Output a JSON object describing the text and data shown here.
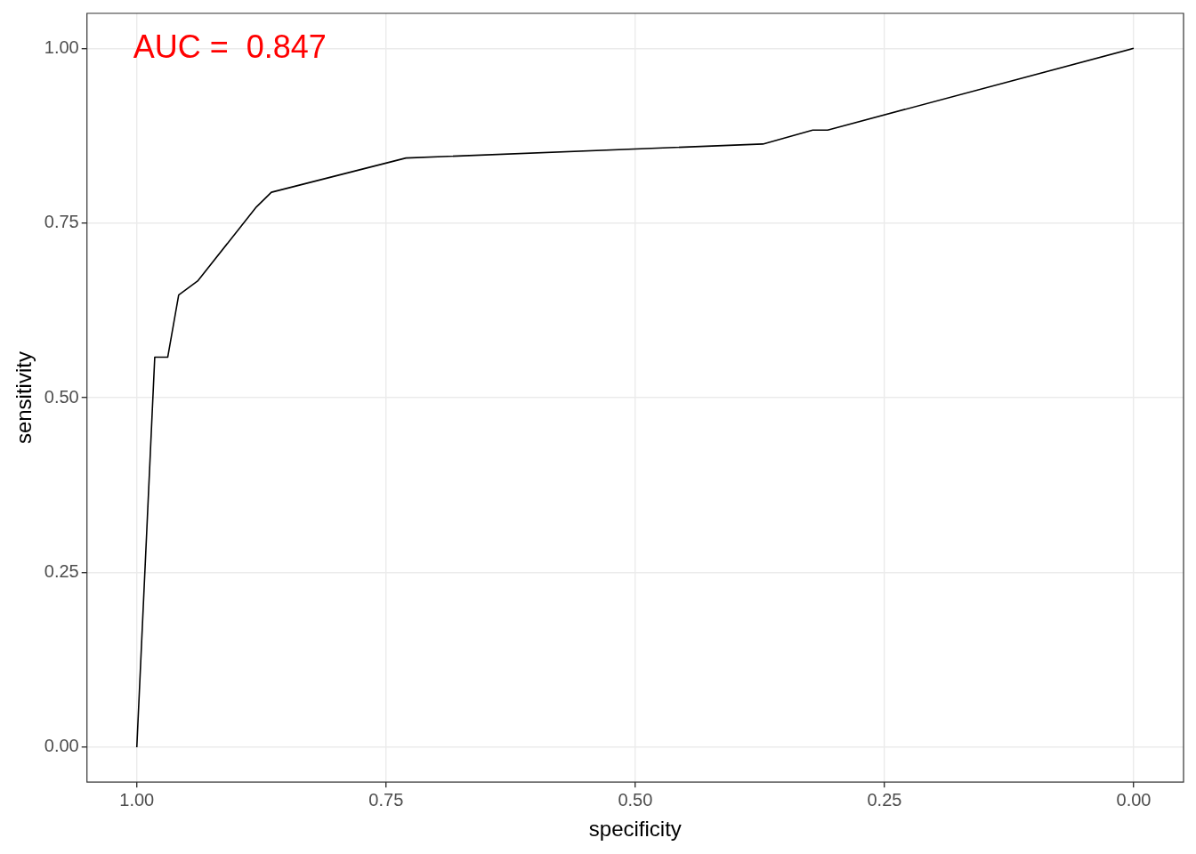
{
  "chart_data": {
    "type": "line",
    "xlabel": "specificity",
    "ylabel": "sensitivity",
    "x": [
      1.0,
      0.982,
      0.969,
      0.958,
      0.939,
      0.88,
      0.865,
      0.73,
      0.372,
      0.322,
      0.307,
      0.0
    ],
    "series": [
      {
        "color": "#000000",
        "values": [
          0.0,
          0.558,
          0.558,
          0.647,
          0.667,
          0.773,
          0.794,
          0.843,
          0.863,
          0.883,
          0.883,
          1.0
        ]
      }
    ],
    "xlim": [
      1.05,
      -0.05
    ],
    "xticks": [
      {
        "value": 1,
        "label": "1.00"
      },
      {
        "value": 0.75,
        "label": "0.75"
      },
      {
        "value": 0.5,
        "label": "0.50"
      },
      {
        "value": 0.25,
        "label": "0.25"
      },
      {
        "value": 0,
        "label": "0.00"
      }
    ],
    "ylim": [
      -0.05,
      1.05
    ],
    "yticks": [
      {
        "value": 0,
        "label": "0.00"
      },
      {
        "value": 0.25,
        "label": "0.25"
      },
      {
        "value": 0.5,
        "label": "0.50"
      },
      {
        "value": 0.75,
        "label": "0.75"
      },
      {
        "value": 1,
        "label": "1.00"
      }
    ],
    "grid": true,
    "legend": false,
    "marker": "none",
    "line_style": "solid",
    "annotations": [
      "AUC =  0.847"
    ]
  }
}
